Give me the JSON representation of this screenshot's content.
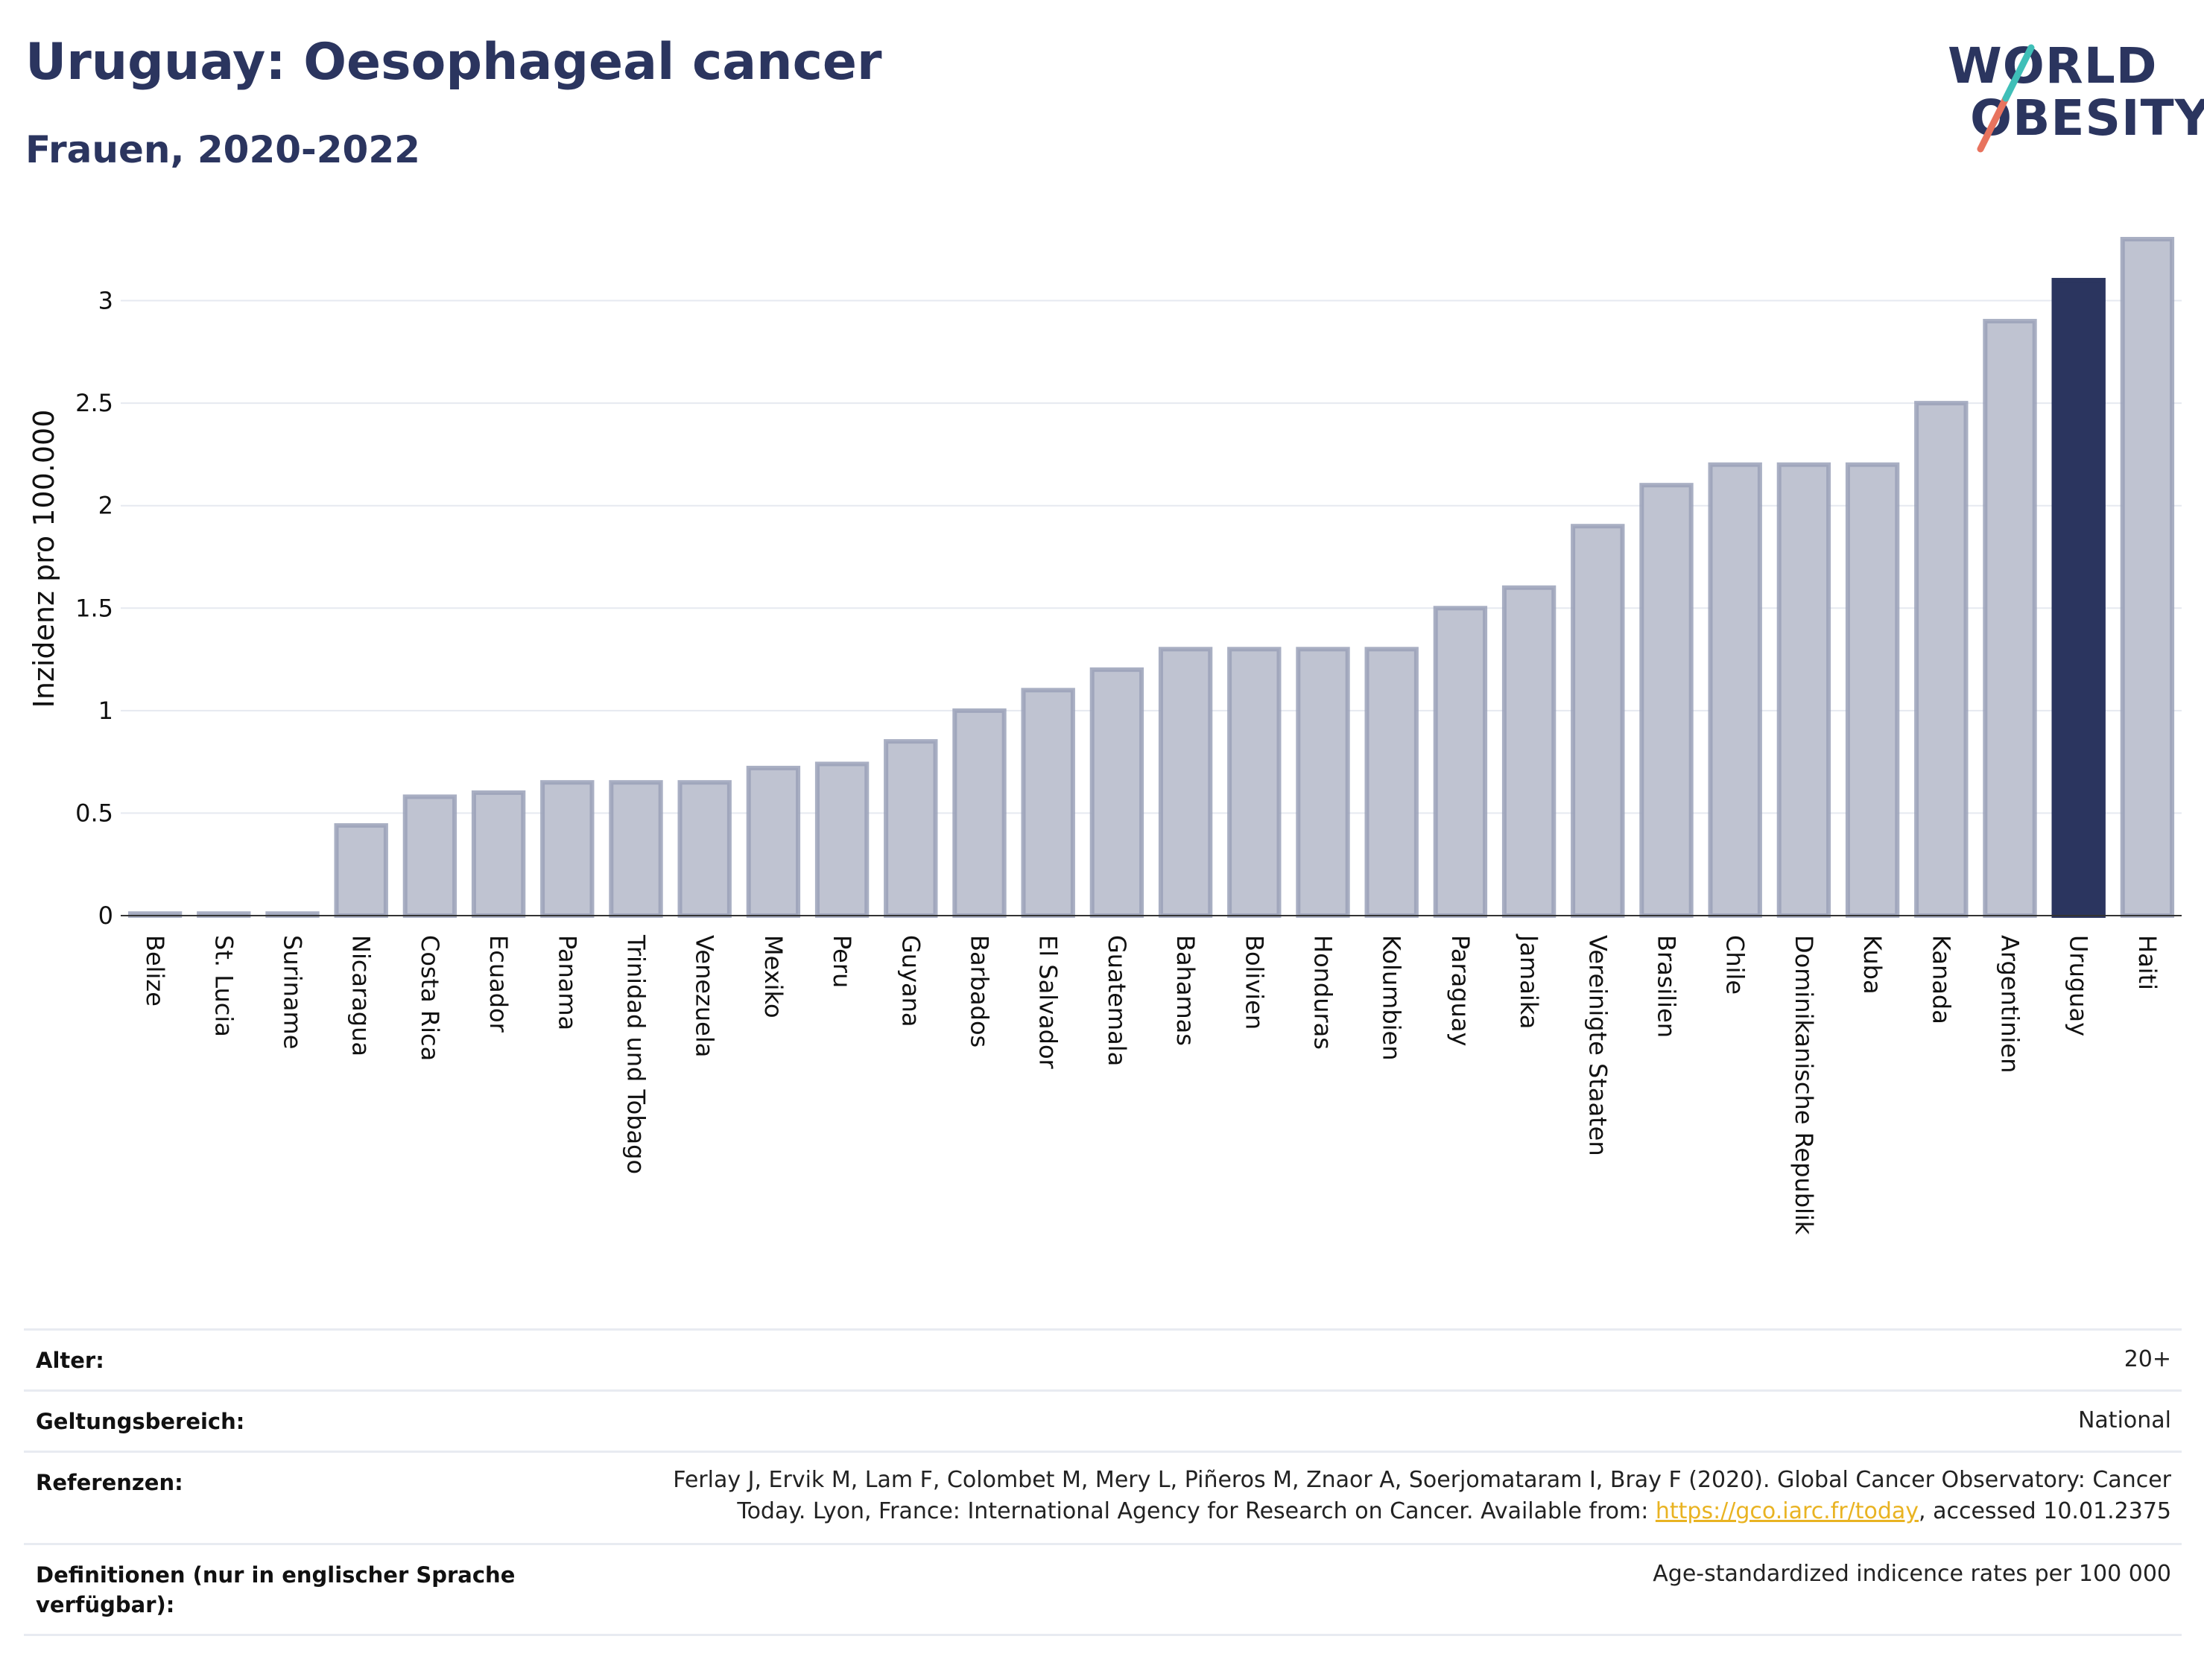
{
  "title": "Uruguay: Oesophageal cancer",
  "subtitle": "Frauen, 2020-2022",
  "logo": {
    "line1": "WORLD",
    "line2": "OBESITY"
  },
  "colors": {
    "bar": "#bfc3d1",
    "bar_stroke": "#9aa1b8",
    "highlight": "#2b355f",
    "grid": "#e6e9f0",
    "text": "#2b355f",
    "link": "#e9b322"
  },
  "chart_data": {
    "type": "bar",
    "ylabel": "Inzidenz pro 100.000",
    "xlabel": "",
    "ylim": [
      0,
      3.3
    ],
    "yticks": [
      0,
      0.5,
      1,
      1.5,
      2,
      2.5,
      3
    ],
    "ytick_labels": [
      "0",
      "0.5",
      "1",
      "1.5",
      "2",
      "2.5",
      "3"
    ],
    "highlight": "Uruguay",
    "categories": [
      "Belize",
      "St. Lucia",
      "Suriname",
      "Nicaragua",
      "Costa Rica",
      "Ecuador",
      "Panama",
      "Trinidad und Tobago",
      "Venezuela",
      "Mexiko",
      "Peru",
      "Guyana",
      "Barbados",
      "El Salvador",
      "Guatemala",
      "Bahamas",
      "Bolivien",
      "Honduras",
      "Kolumbien",
      "Paraguay",
      "Jamaika",
      "Vereinigte Staaten",
      "Brasilien",
      "Chile",
      "Dominikanische Republik",
      "Kuba",
      "Kanada",
      "Argentinien",
      "Uruguay",
      "Haiti"
    ],
    "values": [
      0.01,
      0.01,
      0.01,
      0.44,
      0.58,
      0.6,
      0.65,
      0.65,
      0.65,
      0.72,
      0.74,
      0.85,
      1.0,
      1.1,
      1.2,
      1.3,
      1.3,
      1.3,
      1.3,
      1.5,
      1.6,
      1.9,
      2.1,
      2.2,
      2.2,
      2.2,
      2.5,
      2.9,
      3.1,
      3.3
    ]
  },
  "info": {
    "age_label": "Alter:",
    "age_value": "20+",
    "scope_label": "Geltungsbereich:",
    "scope_value": "National",
    "refs_label": "Referenzen:",
    "refs_line1": "Ferlay J, Ervik M, Lam F, Colombet M, Mery L, Piñeros M, Znaor A, Soerjomataram I, Bray F (2020). Global Cancer Observatory: Cancer",
    "refs_line2_a": "Today. Lyon, France: International Agency for Research on Cancer. Available from: ",
    "refs_link": "https://gco.iarc.fr/today",
    "refs_line2_b": ", accessed 10.01.2375",
    "defs_label_1": "Definitionen (nur in englischer Sprache",
    "defs_label_2": "verfügbar):",
    "defs_value": "Age-standardized indicence rates per 100 000"
  }
}
